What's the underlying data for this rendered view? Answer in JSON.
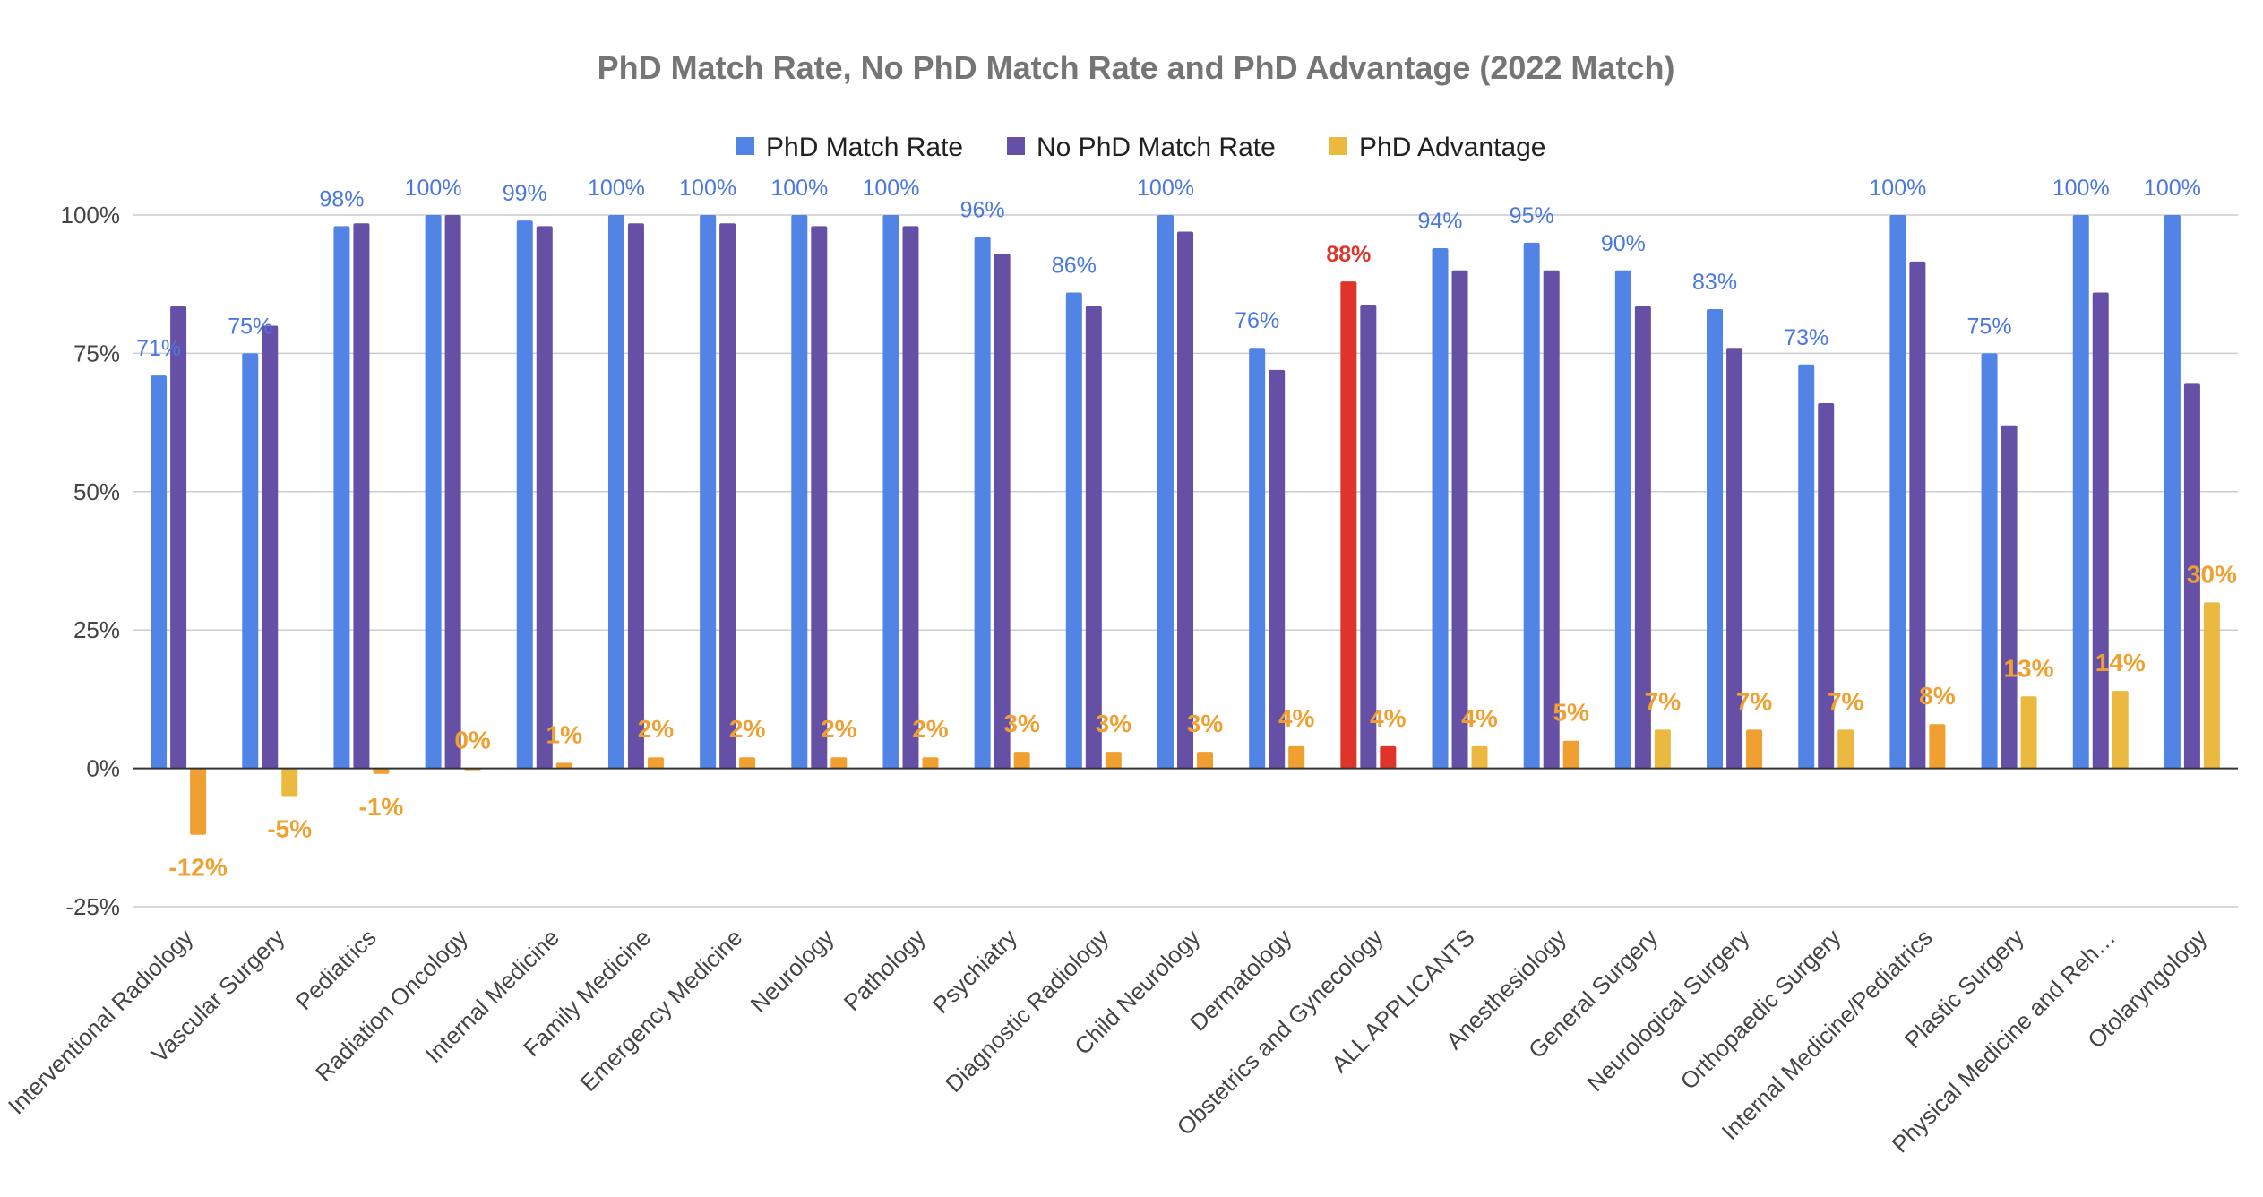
{
  "chart_data": {
    "type": "bar",
    "title": "PhD Match Rate, No PhD Match Rate and PhD Advantage (2022 Match)",
    "xlabel": "",
    "ylabel": "",
    "ylim": [
      -25,
      100
    ],
    "y_ticks": [
      "100%",
      "75%",
      "50%",
      "25%",
      "0%",
      "-25%"
    ],
    "y_tick_values": [
      100,
      75,
      50,
      25,
      0,
      -25
    ],
    "grid": true,
    "legend_position": "top",
    "categories": [
      "Interventional Radiology",
      "Vascular Surgery",
      "Pediatrics",
      "Radiation Oncology",
      "Internal Medicine",
      "Family Medicine",
      "Emergency Medicine",
      "Neurology",
      "Pathology",
      "Psychiatry",
      "Diagnostic Radiology",
      "Child Neurology",
      "Dermatology",
      "Obstetrics and Gynecology",
      "ALL APPLICANTS",
      "Anesthesiology",
      "General Surgery",
      "Neurological Surgery",
      "Orthopaedic Surgery",
      "Internal Medicine/Pediatrics",
      "Plastic Surgery",
      "Physical Medicine and Reh…",
      "Otolaryngology"
    ],
    "series": [
      {
        "name": "PhD Match Rate",
        "color": "#5284e6",
        "values": [
          71,
          75,
          98,
          100,
          99,
          100,
          100,
          100,
          100,
          96,
          86,
          100,
          76,
          88,
          94,
          95,
          90,
          83,
          73,
          100,
          75,
          100,
          100
        ],
        "labels": [
          "71%",
          "75%",
          "98%",
          "100%",
          "99%",
          "100%",
          "100%",
          "100%",
          "100%",
          "96%",
          "86%",
          "100%",
          "76%",
          "88%",
          "94%",
          "95%",
          "90%",
          "83%",
          "73%",
          "100%",
          "75%",
          "100%",
          "100%"
        ]
      },
      {
        "name": "No PhD Match Rate",
        "color": "#6650a6",
        "values": [
          83.5,
          80,
          98.5,
          100,
          98,
          98.5,
          98.5,
          98,
          98,
          93,
          83.5,
          97,
          72,
          83.8,
          90,
          90,
          83.5,
          76,
          66,
          91.6,
          62,
          86,
          69.5
        ]
      },
      {
        "name": "PhD Advantage",
        "color": "#ebb93f",
        "values": [
          -12,
          -5,
          -1,
          0,
          1,
          2,
          2,
          2,
          2,
          3,
          3,
          3,
          4,
          4,
          4,
          5,
          7,
          7,
          7,
          8,
          13,
          14,
          30
        ],
        "labels": [
          "-12%",
          "-5%",
          "-1%",
          "0%",
          "1%",
          "2%",
          "2%",
          "2%",
          "2%",
          "3%",
          "3%",
          "3%",
          "4%",
          "4%",
          "4%",
          "5%",
          "7%",
          "7%",
          "7%",
          "8%",
          "13%",
          "14%",
          "30%"
        ]
      }
    ],
    "highlight": {
      "category": "Obstetrics and Gynecology",
      "color": "#e0342b"
    },
    "bar_colors_advantage": [
      "#f0a030",
      "#ebb93f",
      "#f0a030",
      "#f0a030",
      "#f0a030",
      "#f0a030",
      "#f0a030",
      "#f0a030",
      "#f0a030",
      "#f0a030",
      "#f0a030",
      "#f0a030",
      "#f0a030",
      "#e0342b",
      "#ebb93f",
      "#f0a030",
      "#ebb93f",
      "#f0a030",
      "#ebb93f",
      "#f0a030",
      "#ebb93f",
      "#ebb93f",
      "#ebb93f"
    ],
    "label_color_phd": "#4a78e0",
    "label_color_advantage": "#f0a030",
    "label_color_highlight": "#e0342b"
  }
}
